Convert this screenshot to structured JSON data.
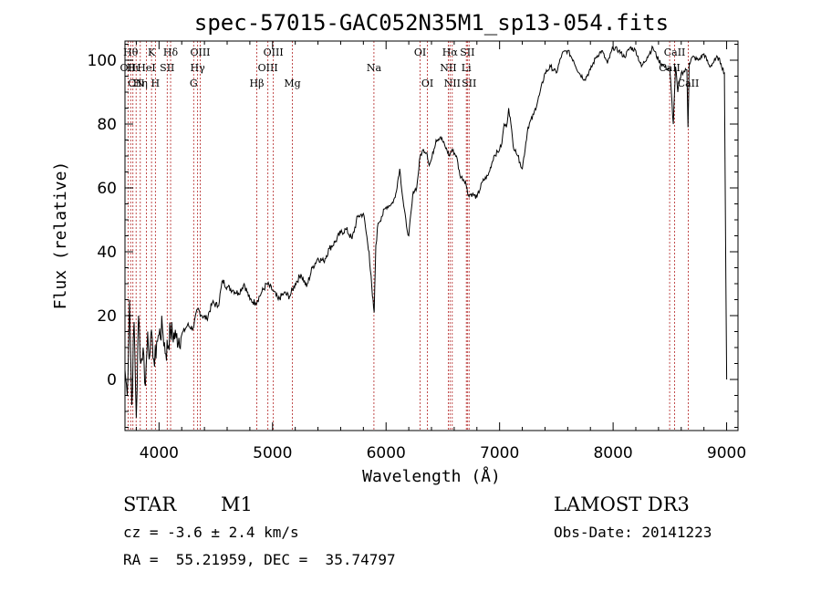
{
  "chart_data": {
    "type": "line",
    "title": "spec-57015-GAC052N35M1_sp13-054.fits",
    "xlabel": "Wavelength (Å)",
    "ylabel": "Flux (relative)",
    "xlim": [
      3700,
      9100
    ],
    "ylim": [
      -16,
      106
    ],
    "xticks": [
      4000,
      5000,
      6000,
      7000,
      8000,
      9000
    ],
    "yticks": [
      0,
      20,
      40,
      60,
      80,
      100
    ],
    "grid": false,
    "line_color": "#000000",
    "marker_color": "#b22222",
    "spectrum": {
      "name": "flux",
      "x": [
        3700,
        3720,
        3740,
        3760,
        3780,
        3800,
        3820,
        3840,
        3860,
        3880,
        3900,
        3920,
        3940,
        3960,
        3980,
        4000,
        4030,
        4060,
        4100,
        4150,
        4200,
        4250,
        4300,
        4340,
        4380,
        4420,
        4470,
        4520,
        4560,
        4600,
        4650,
        4700,
        4750,
        4800,
        4850,
        4900,
        4950,
        5000,
        5050,
        5100,
        5150,
        5200,
        5250,
        5300,
        5350,
        5400,
        5450,
        5500,
        5550,
        5600,
        5650,
        5700,
        5750,
        5800,
        5850,
        5880,
        5895,
        5910,
        5930,
        5960,
        6000,
        6050,
        6080,
        6120,
        6150,
        6180,
        6200,
        6240,
        6270,
        6300,
        6330,
        6360,
        6380,
        6400,
        6440,
        6480,
        6520,
        6560,
        6580,
        6620,
        6650,
        6700,
        6720,
        6760,
        6800,
        6850,
        6900,
        6950,
        7000,
        7020,
        7040,
        7060,
        7080,
        7100,
        7120,
        7140,
        7160,
        7180,
        7200,
        7250,
        7300,
        7350,
        7400,
        7450,
        7500,
        7550,
        7600,
        7650,
        7700,
        7750,
        7800,
        7850,
        7900,
        7950,
        8000,
        8050,
        8100,
        8150,
        8200,
        8250,
        8300,
        8350,
        8400,
        8450,
        8500,
        8530,
        8550,
        8570,
        8600,
        8650,
        8660,
        8670,
        8700,
        8750,
        8800,
        8850,
        8900,
        8920,
        8950,
        8980,
        9000
      ],
      "values": [
        3,
        -5,
        25,
        -8,
        18,
        -12,
        20,
        5,
        10,
        -2,
        15,
        8,
        13,
        4,
        12,
        14,
        16,
        8,
        15,
        13,
        14,
        17,
        16,
        22,
        20,
        19,
        24,
        23,
        31,
        29,
        28,
        27,
        30,
        25,
        24,
        27,
        30,
        28,
        25,
        27,
        26,
        30,
        33,
        29,
        35,
        38,
        37,
        41,
        43,
        46,
        47,
        44,
        51,
        52,
        40,
        26,
        21,
        42,
        49,
        51,
        54,
        55,
        57,
        66,
        56,
        48,
        45,
        59,
        60,
        70,
        72,
        71,
        67,
        69,
        75,
        76,
        73,
        70,
        72,
        70,
        64,
        62,
        58,
        58,
        57,
        62,
        64,
        70,
        72,
        74,
        80,
        79,
        85,
        80,
        73,
        72,
        70,
        68,
        66,
        79,
        83,
        89,
        96,
        98,
        96,
        102,
        103,
        100,
        96,
        94,
        97,
        101,
        103,
        99,
        104,
        103,
        101,
        104,
        103,
        98,
        101,
        104,
        100,
        98,
        97,
        80,
        98,
        90,
        96,
        97,
        79,
        99,
        101,
        100,
        102,
        98,
        100,
        101,
        99,
        96,
        0
      ]
    },
    "spectral_lines": [
      {
        "wavelength": 3727,
        "label": "OII",
        "row": 1
      },
      {
        "wavelength": 3750,
        "label": "Hθ",
        "row": 0
      },
      {
        "wavelength": 3770,
        "label": "Hι",
        "row": 1
      },
      {
        "wavelength": 3798,
        "label": "CN",
        "row": 2
      },
      {
        "wavelength": 3835,
        "label": "Hη",
        "row": 2
      },
      {
        "wavelength": 3889,
        "label": "HeI",
        "row": 1
      },
      {
        "wavelength": 3934,
        "label": "K",
        "row": 0
      },
      {
        "wavelength": 3968,
        "label": "H",
        "row": 2
      },
      {
        "wavelength": 4072,
        "label": "SII",
        "row": 1
      },
      {
        "wavelength": 4102,
        "label": "Hδ",
        "row": 0
      },
      {
        "wavelength": 4305,
        "label": "G",
        "row": 2
      },
      {
        "wavelength": 4340,
        "label": "Hγ",
        "row": 1
      },
      {
        "wavelength": 4363,
        "label": "OIII",
        "row": 0
      },
      {
        "wavelength": 4861,
        "label": "Hβ",
        "row": 2
      },
      {
        "wavelength": 4959,
        "label": "OIII",
        "row": 1
      },
      {
        "wavelength": 5007,
        "label": "OIII",
        "row": 0
      },
      {
        "wavelength": 5175,
        "label": "Mg",
        "row": 2
      },
      {
        "wavelength": 5893,
        "label": "Na",
        "row": 1
      },
      {
        "wavelength": 6300,
        "label": "OI",
        "row": 0
      },
      {
        "wavelength": 6364,
        "label": "OI",
        "row": 2
      },
      {
        "wavelength": 6548,
        "label": "NII",
        "row": 1
      },
      {
        "wavelength": 6563,
        "label": "Hα",
        "row": 0
      },
      {
        "wavelength": 6583,
        "label": "NII",
        "row": 2
      },
      {
        "wavelength": 6707,
        "label": "Li",
        "row": 1
      },
      {
        "wavelength": 6716,
        "label": "SII",
        "row": 0
      },
      {
        "wavelength": 6731,
        "label": "SII",
        "row": 2
      },
      {
        "wavelength": 8498,
        "label": "CaII",
        "row": 1
      },
      {
        "wavelength": 8542,
        "label": "CaII",
        "row": 0
      },
      {
        "wavelength": 8662,
        "label": "CaII",
        "row": 2
      }
    ]
  },
  "footer": {
    "object_class": "STAR",
    "subclass": "M1",
    "survey": "LAMOST DR3",
    "redshift_text": "cz = -3.6 ± 2.4 km/s",
    "obs_date_text": "Obs-Date: 20141223",
    "coords_text": "RA =  55.21959, DEC =  35.74797"
  }
}
